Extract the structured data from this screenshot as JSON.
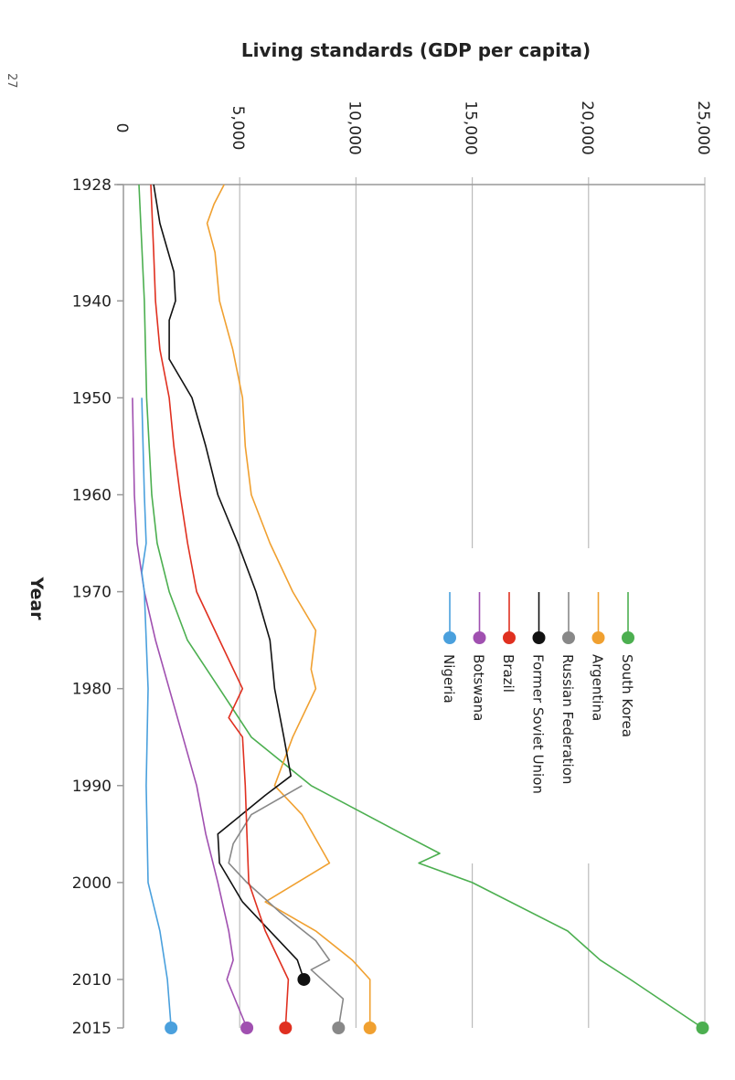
{
  "page_number": "27",
  "chart_data": {
    "type": "line",
    "orientation": "rotated 90° clockwise (years run down the page, GDP runs across)",
    "title": "Living standards (GDP per capita)",
    "xlabel": "Year",
    "ylabel": "",
    "x_ticks": [
      "1928",
      "1940",
      "1950",
      "1960",
      "1970",
      "1980",
      "1990",
      "2000",
      "2010",
      "2015"
    ],
    "y_ticks": [
      "0",
      "5,000",
      "10,000",
      "15,000",
      "20,000",
      "25,000"
    ],
    "y_tick_values": [
      0,
      5000,
      10000,
      15000,
      20000,
      25000
    ],
    "xlim": [
      1928,
      2015
    ],
    "ylim": [
      0,
      25000
    ],
    "grid": true,
    "legend_placement": "center-right",
    "series": [
      {
        "name": "South Korea",
        "color": "#4caf50",
        "marker_end": true,
        "x": [
          1928,
          1940,
          1950,
          1960,
          1965,
          1970,
          1975,
          1980,
          1985,
          1990,
          1995,
          1997,
          1998,
          2000,
          2005,
          2008,
          2010,
          2015
        ],
        "y": [
          670,
          900,
          1000,
          1220,
          1450,
          1970,
          2750,
          4130,
          5500,
          8070,
          12000,
          13600,
          12700,
          15000,
          19100,
          20500,
          21800,
          24900
        ]
      },
      {
        "name": "Argentina",
        "color": "#f0a030",
        "marker_end": true,
        "x": [
          1928,
          1930,
          1932,
          1935,
          1940,
          1945,
          1950,
          1955,
          1960,
          1965,
          1970,
          1974,
          1978,
          1980,
          1985,
          1990,
          1993,
          1998,
          2002,
          2005,
          2008,
          2010,
          2015
        ],
        "y": [
          4330,
          3900,
          3600,
          3940,
          4130,
          4700,
          5120,
          5240,
          5500,
          6300,
          7280,
          8270,
          8070,
          8270,
          7280,
          6500,
          7680,
          8860,
          6100,
          8270,
          9840,
          10600,
          10600
        ]
      },
      {
        "name": "Russian Federation",
        "color": "#888888",
        "marker_end": true,
        "x": [
          1990,
          1993,
          1996,
          1998,
          2000,
          2003,
          2006,
          2008,
          2009,
          2012,
          2015
        ],
        "y": [
          7680,
          5500,
          4720,
          4530,
          5310,
          6700,
          8270,
          8860,
          8070,
          9450,
          9250
        ]
      },
      {
        "name": "Former Soviet Union",
        "color": "#111111",
        "marker_end": true,
        "x": [
          1928,
          1932,
          1937,
          1940,
          1942,
          1946,
          1950,
          1955,
          1960,
          1965,
          1970,
          1975,
          1980,
          1985,
          1989,
          1991,
          1995,
          1998,
          2002,
          2005,
          2008,
          2010
        ],
        "y": [
          1300,
          1570,
          2170,
          2240,
          1970,
          1970,
          2950,
          3540,
          4060,
          4920,
          5700,
          6300,
          6500,
          6900,
          7200,
          6100,
          4060,
          4130,
          5120,
          6300,
          7480,
          7760
        ]
      },
      {
        "name": "Brazil",
        "color": "#e03020",
        "marker_end": true,
        "x": [
          1928,
          1935,
          1940,
          1945,
          1950,
          1955,
          1960,
          1965,
          1970,
          1975,
          1980,
          1983,
          1985,
          1990,
          1995,
          2000,
          2005,
          2010,
          2015
        ],
        "y": [
          1180,
          1300,
          1380,
          1570,
          1970,
          2170,
          2440,
          2760,
          3150,
          4130,
          5120,
          4530,
          5120,
          5240,
          5310,
          5390,
          6100,
          7090,
          6970
        ]
      },
      {
        "name": "Botswana",
        "color": "#a050b0",
        "marker_end": true,
        "x": [
          1950,
          1960,
          1965,
          1970,
          1975,
          1980,
          1985,
          1990,
          1995,
          2000,
          2005,
          2008,
          2010,
          2015
        ],
        "y": [
          390,
          470,
          590,
          900,
          1380,
          1970,
          2560,
          3150,
          3540,
          4060,
          4530,
          4720,
          4450,
          5310
        ]
      },
      {
        "name": "Nigeria",
        "color": "#4aa0dd",
        "marker_end": true,
        "x": [
          1950,
          1960,
          1965,
          1968,
          1970,
          1980,
          1990,
          2000,
          2005,
          2010,
          2015
        ],
        "y": [
          790,
          900,
          980,
          790,
          900,
          1060,
          980,
          1060,
          1570,
          1890,
          2050
        ]
      }
    ]
  }
}
